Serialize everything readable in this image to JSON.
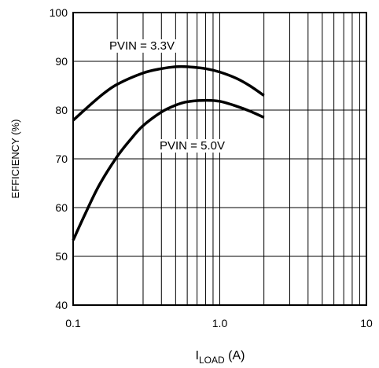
{
  "chart_data": {
    "type": "line",
    "x_scale": "log",
    "xlim": [
      0.1,
      10
    ],
    "ylim": [
      40,
      100
    ],
    "xticks": [
      {
        "value": 0.1,
        "label": "0.1"
      },
      {
        "value": 1,
        "label": "1.0"
      },
      {
        "value": 10,
        "label": "10"
      }
    ],
    "yticks": [
      {
        "value": 40,
        "label": "40"
      },
      {
        "value": 50,
        "label": "50"
      },
      {
        "value": 60,
        "label": "60"
      },
      {
        "value": 70,
        "label": "70"
      },
      {
        "value": 80,
        "label": "80"
      },
      {
        "value": 90,
        "label": "90"
      },
      {
        "value": 100,
        "label": "100"
      }
    ],
    "ylabel": "EFFICIENCY (%)",
    "xlabel": {
      "main": "I",
      "subscript": "LOAD",
      "unit": " (A)"
    },
    "grid": true,
    "series": [
      {
        "name": "PVIN = 3.3V",
        "x": [
          0.1,
          0.13,
          0.16,
          0.2,
          0.3,
          0.4,
          0.5,
          0.6,
          0.8,
          1.0,
          1.3,
          1.6,
          2.0
        ],
        "y": [
          77.9,
          81.0,
          83.3,
          85.3,
          87.6,
          88.5,
          88.9,
          88.9,
          88.5,
          87.8,
          86.5,
          85.0,
          83.0
        ]
      },
      {
        "name": "PVIN = 5.0V",
        "x": [
          0.1,
          0.12,
          0.15,
          0.2,
          0.25,
          0.3,
          0.4,
          0.5,
          0.6,
          0.8,
          1.0,
          1.3,
          1.6,
          2.0
        ],
        "y": [
          53.3,
          58.5,
          64.5,
          70.5,
          74.2,
          76.8,
          79.6,
          81.0,
          81.7,
          82.0,
          81.8,
          80.8,
          79.8,
          78.5
        ]
      }
    ],
    "annotations": [
      {
        "text": "PVIN = 3.3V",
        "series": 0
      },
      {
        "text": "PVIN = 5.0V",
        "series": 1
      }
    ]
  }
}
